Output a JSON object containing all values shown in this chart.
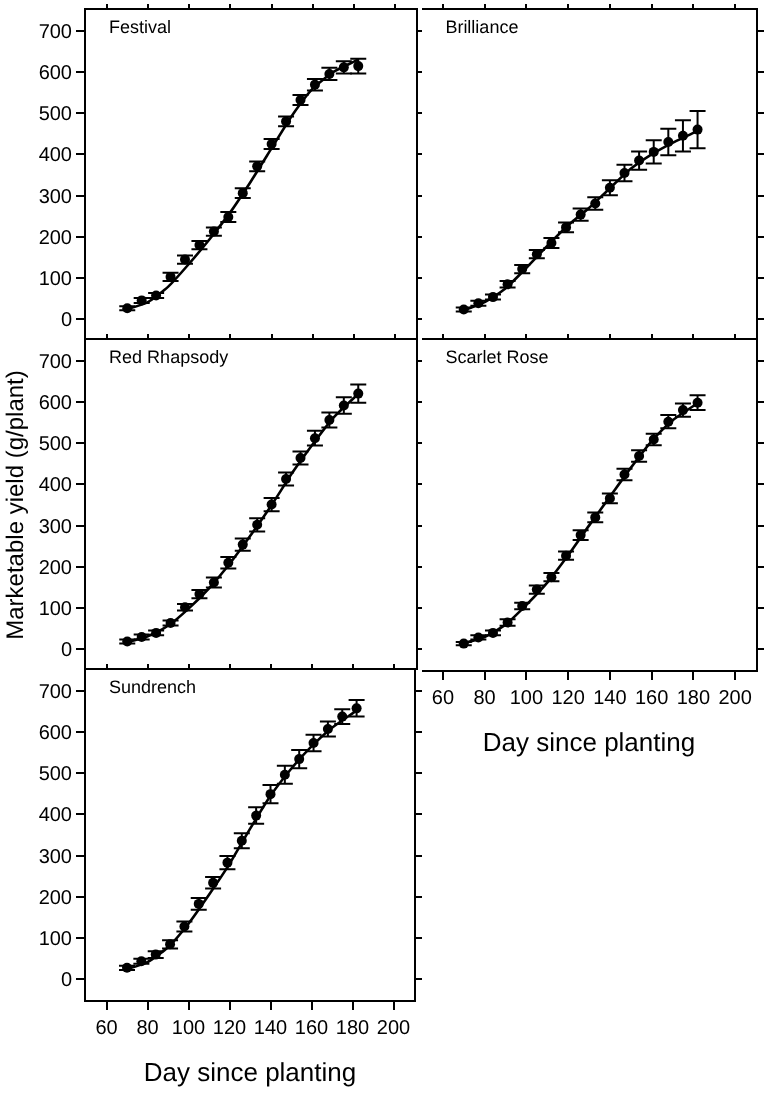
{
  "chart_data": [
    {
      "type": "scatter",
      "title": "Festival",
      "xlim": [
        50,
        210
      ],
      "ylim": [
        -50,
        750
      ],
      "xticks": [
        60,
        80,
        100,
        120,
        140,
        160,
        180,
        200
      ],
      "yticks": [
        0,
        100,
        200,
        300,
        400,
        500,
        600,
        700
      ],
      "tick_labels": "y",
      "grid": false,
      "series": [
        {
          "type": "scatter",
          "marker": "circle",
          "color": "#000000",
          "x": [
            70,
            77,
            84,
            91,
            98,
            105,
            112,
            119,
            126,
            133,
            140,
            147,
            154,
            161,
            168,
            175,
            182
          ],
          "values": [
            27,
            46,
            58,
            103,
            145,
            180,
            213,
            248,
            306,
            371,
            425,
            480,
            532,
            569,
            595,
            611,
            614
          ],
          "errors": [
            5,
            6,
            6,
            10,
            10,
            10,
            10,
            12,
            12,
            12,
            12,
            12,
            12,
            14,
            15,
            15,
            18
          ]
        },
        {
          "type": "line",
          "color": "#000000",
          "x": [
            70,
            80,
            90,
            100,
            110,
            120,
            130,
            140,
            150,
            160,
            170,
            180,
            182
          ],
          "values": [
            25,
            42,
            80,
            135,
            195,
            260,
            335,
            415,
            495,
            560,
            600,
            625,
            630
          ]
        }
      ]
    },
    {
      "type": "scatter",
      "title": "Brilliance",
      "xlim": [
        50,
        210
      ],
      "ylim": [
        -50,
        750
      ],
      "xticks": [
        60,
        80,
        100,
        120,
        140,
        160,
        180,
        200
      ],
      "yticks": [
        0,
        100,
        200,
        300,
        400,
        500,
        600,
        700
      ],
      "tick_labels": false,
      "grid": false,
      "series": [
        {
          "type": "scatter",
          "marker": "circle",
          "color": "#000000",
          "x": [
            70,
            77,
            84,
            91,
            98,
            105,
            112,
            119,
            126,
            133,
            140,
            147,
            154,
            161,
            168,
            175,
            182
          ],
          "values": [
            24,
            39,
            54,
            85,
            122,
            158,
            185,
            223,
            254,
            281,
            319,
            355,
            385,
            406,
            430,
            445,
            460
          ],
          "errors": [
            5,
            6,
            6,
            8,
            10,
            10,
            12,
            12,
            15,
            15,
            18,
            20,
            22,
            28,
            32,
            38,
            45
          ]
        },
        {
          "type": "line",
          "color": "#000000",
          "x": [
            70,
            80,
            90,
            100,
            110,
            120,
            130,
            140,
            150,
            160,
            170,
            180,
            182
          ],
          "values": [
            22,
            42,
            75,
            125,
            178,
            228,
            270,
            318,
            365,
            400,
            428,
            452,
            458
          ]
        }
      ]
    },
    {
      "type": "scatter",
      "title": "Red Rhapsody",
      "ylabel": "Marketable yield (g/plant)",
      "xlim": [
        50,
        210
      ],
      "ylim": [
        -50,
        750
      ],
      "xticks": [
        60,
        80,
        100,
        120,
        140,
        160,
        180,
        200
      ],
      "yticks": [
        0,
        100,
        200,
        300,
        400,
        500,
        600,
        700
      ],
      "tick_labels": "y",
      "grid": false,
      "series": [
        {
          "type": "scatter",
          "marker": "circle",
          "color": "#000000",
          "x": [
            70,
            77,
            84,
            91,
            98,
            105,
            112,
            119,
            126,
            133,
            140,
            147,
            154,
            161,
            168,
            175,
            182
          ],
          "values": [
            19,
            30,
            40,
            64,
            102,
            134,
            162,
            210,
            254,
            302,
            351,
            413,
            464,
            512,
            556,
            591,
            620
          ],
          "errors": [
            5,
            6,
            6,
            6,
            8,
            10,
            12,
            14,
            15,
            16,
            16,
            16,
            16,
            18,
            18,
            20,
            22
          ]
        },
        {
          "type": "line",
          "color": "#000000",
          "x": [
            70,
            80,
            90,
            100,
            110,
            120,
            130,
            140,
            150,
            160,
            170,
            180,
            182
          ],
          "values": [
            18,
            32,
            58,
            100,
            150,
            210,
            278,
            350,
            428,
            498,
            562,
            610,
            620
          ]
        }
      ]
    },
    {
      "type": "scatter",
      "title": "Scarlet Rose",
      "xlabel": "Day since planting",
      "xlim": [
        50,
        210
      ],
      "ylim": [
        -50,
        750
      ],
      "xticks": [
        60,
        80,
        100,
        120,
        140,
        160,
        180,
        200
      ],
      "yticks": [
        0,
        100,
        200,
        300,
        400,
        500,
        600,
        700
      ],
      "tick_labels": "x",
      "grid": false,
      "series": [
        {
          "type": "scatter",
          "marker": "circle",
          "color": "#000000",
          "x": [
            70,
            77,
            84,
            91,
            98,
            105,
            112,
            119,
            126,
            133,
            140,
            147,
            154,
            161,
            168,
            175,
            182
          ],
          "values": [
            14,
            29,
            40,
            65,
            105,
            145,
            175,
            227,
            277,
            320,
            366,
            424,
            469,
            509,
            552,
            580,
            598
          ],
          "errors": [
            4,
            5,
            6,
            8,
            8,
            10,
            10,
            10,
            12,
            12,
            12,
            14,
            14,
            14,
            16,
            16,
            18
          ]
        },
        {
          "type": "line",
          "color": "#000000",
          "x": [
            70,
            80,
            90,
            100,
            110,
            120,
            130,
            140,
            150,
            160,
            170,
            180,
            182
          ],
          "values": [
            15,
            30,
            60,
            108,
            162,
            228,
            300,
            370,
            440,
            505,
            555,
            590,
            597
          ]
        }
      ]
    },
    {
      "type": "scatter",
      "title": "Sundrench",
      "xlabel": "Day since planting",
      "xlim": [
        50,
        210
      ],
      "ylim": [
        -50,
        750
      ],
      "xticks": [
        60,
        80,
        100,
        120,
        140,
        160,
        180,
        200
      ],
      "yticks": [
        0,
        100,
        200,
        300,
        400,
        500,
        600,
        700
      ],
      "grid": false,
      "series": [
        {
          "type": "scatter",
          "marker": "circle",
          "color": "#000000",
          "x": [
            70,
            77,
            84,
            91,
            98,
            105,
            112,
            119,
            126,
            133,
            140,
            147,
            154,
            161,
            168,
            175,
            182
          ],
          "values": [
            28,
            44,
            60,
            85,
            128,
            183,
            234,
            283,
            336,
            397,
            449,
            496,
            534,
            573,
            607,
            637,
            657
          ],
          "errors": [
            5,
            6,
            8,
            10,
            12,
            14,
            14,
            16,
            18,
            20,
            22,
            22,
            22,
            20,
            18,
            18,
            20
          ]
        },
        {
          "type": "line",
          "color": "#000000",
          "x": [
            70,
            80,
            90,
            100,
            110,
            120,
            130,
            140,
            150,
            160,
            170,
            180,
            182
          ],
          "values": [
            25,
            42,
            78,
            135,
            205,
            280,
            365,
            445,
            510,
            565,
            610,
            645,
            652
          ]
        }
      ]
    }
  ]
}
